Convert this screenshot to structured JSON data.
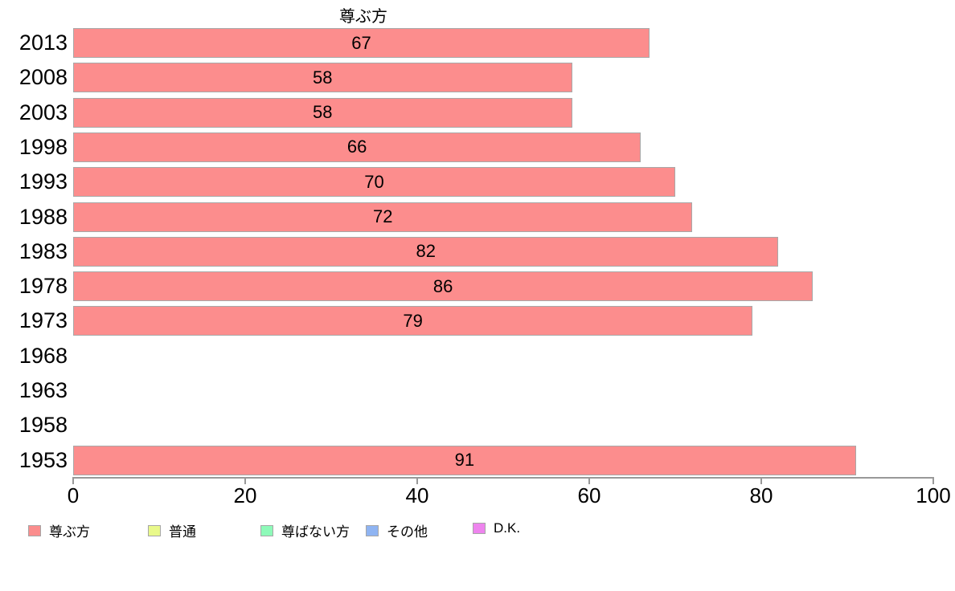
{
  "chart_data": {
    "type": "bar",
    "orientation": "horizontal",
    "title": "尊ぶ方",
    "categories": [
      "2013",
      "2008",
      "2003",
      "1998",
      "1993",
      "1988",
      "1983",
      "1978",
      "1973",
      "1968",
      "1963",
      "1958",
      "1953"
    ],
    "series": [
      {
        "name": "尊ぶ方",
        "values": [
          67,
          58,
          58,
          66,
          70,
          72,
          82,
          86,
          79,
          null,
          null,
          null,
          91
        ]
      }
    ],
    "xlabel": "",
    "ylabel": "",
    "xlim": [
      0,
      100
    ],
    "x_ticks": [
      0,
      20,
      40,
      60,
      80,
      100
    ],
    "grid": false,
    "bar_color": "#fc8d8d",
    "bar_border_color": "#a8a8a8",
    "axis_color": "#999999",
    "value_label_color": "#000000"
  },
  "legend": {
    "position": "bottom",
    "items": [
      {
        "label": "尊ぶ方",
        "color": "#fb8d8d"
      },
      {
        "label": "普通",
        "color": "#e9f98a"
      },
      {
        "label": "尊ばない方",
        "color": "#8efab9"
      },
      {
        "label": "その他",
        "color": "#8fb4f2"
      },
      {
        "label": "D.K.",
        "color": "#ee84ee"
      }
    ]
  }
}
